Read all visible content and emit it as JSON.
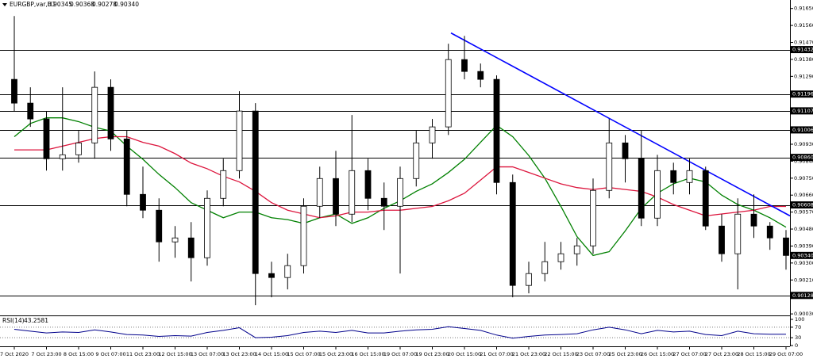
{
  "header": {
    "symbol": "EURGBP,var,H1",
    "values": [
      "0.90345",
      "0.90368",
      "0.90278",
      "0.90340"
    ]
  },
  "chart_data": [
    {
      "type": "candlestick",
      "title": "EURGBP,var,H1",
      "categories": [
        "7 Oct 2020",
        null,
        "7 Oct 23:00",
        null,
        "8 Oct 15:00",
        null,
        "9 Oct 07:00",
        null,
        "11 Oct 23:00",
        null,
        "12 Oct 15:00",
        null,
        "13 Oct 07:00",
        null,
        "13 Oct 23:00",
        null,
        "14 Oct 15:00",
        null,
        "15 Oct 07:00",
        null,
        "15 Oct 23:00",
        null,
        "16 Oct 15:00",
        null,
        "19 Oct 07:00",
        null,
        "19 Oct 23:00",
        null,
        "20 Oct 15:00",
        null,
        "21 Oct 07:00",
        null,
        "21 Oct 23:00",
        null,
        "22 Oct 15:00",
        null,
        "23 Oct 07:00",
        null,
        "25 Oct 23:00",
        null,
        "26 Oct 15:00",
        null,
        "27 Oct 07:00",
        null,
        "27 Oct 23:00",
        null,
        "28 Oct 15:00",
        null,
        "29 Oct 07:00"
      ],
      "open": [
        0.91274,
        0.91148,
        0.91064,
        0.90853,
        0.90874,
        0.90937,
        0.91232,
        0.90958,
        0.90664,
        0.9058,
        0.90412,
        0.90433,
        0.90328,
        0.90643,
        0.9079,
        0.91106,
        0.90244,
        0.90223,
        0.90286,
        0.90601,
        0.90748,
        0.90559,
        0.9079,
        0.90643,
        0.90601,
        0.90748,
        0.90937,
        0.91022,
        0.91379,
        0.91316,
        0.91274,
        0.90727,
        0.90181,
        0.90244,
        0.90307,
        0.90349,
        0.90391,
        0.90685,
        0.90937,
        0.90853,
        0.90538,
        0.9079,
        0.90727,
        0.9079,
        0.90496,
        0.90349,
        0.90559,
        0.90496,
        0.90433
      ],
      "high": [
        0.9161,
        0.91232,
        0.91106,
        0.91232,
        0.91001,
        0.91316,
        0.91274,
        0.91001,
        0.90811,
        0.90643,
        0.90496,
        0.90517,
        0.90685,
        0.90853,
        0.91211,
        0.91148,
        0.90307,
        0.90349,
        0.90643,
        0.90811,
        0.90895,
        0.91085,
        0.90853,
        0.90727,
        0.90811,
        0.91001,
        0.91064,
        0.91463,
        0.91505,
        0.91358,
        0.91295,
        0.90769,
        0.90307,
        0.90412,
        0.90412,
        0.90433,
        0.90748,
        0.91064,
        0.90979,
        0.91001,
        0.90874,
        0.90832,
        0.90853,
        0.90811,
        0.90559,
        0.90643,
        0.90664,
        0.90517,
        0.90475
      ],
      "low": [
        0.91106,
        0.91022,
        0.9079,
        0.9079,
        0.90832,
        0.90853,
        0.90895,
        0.90601,
        0.90538,
        0.90307,
        0.90328,
        0.90202,
        0.90286,
        0.90601,
        0.90748,
        0.90076,
        0.90118,
        0.9016,
        0.90244,
        0.90538,
        0.90496,
        0.90517,
        0.9058,
        0.90475,
        0.90244,
        0.90706,
        0.90853,
        0.90979,
        0.91274,
        0.91232,
        0.90664,
        0.90118,
        0.90139,
        0.90202,
        0.90265,
        0.90286,
        0.90349,
        0.90643,
        0.90727,
        0.90496,
        0.90496,
        0.90664,
        0.90664,
        0.90475,
        0.90307,
        0.9016,
        0.90433,
        0.9037,
        0.90265
      ],
      "close": [
        0.91148,
        0.91064,
        0.90853,
        0.90874,
        0.90937,
        0.91232,
        0.90958,
        0.90664,
        0.9058,
        0.90412,
        0.90433,
        0.90328,
        0.90643,
        0.9079,
        0.91106,
        0.90244,
        0.90223,
        0.90286,
        0.90601,
        0.90748,
        0.90559,
        0.9079,
        0.90643,
        0.90601,
        0.90748,
        0.90937,
        0.91022,
        0.91379,
        0.91316,
        0.91274,
        0.90727,
        0.90181,
        0.90244,
        0.90307,
        0.90349,
        0.90391,
        0.90685,
        0.90937,
        0.90853,
        0.90538,
        0.9079,
        0.90727,
        0.9079,
        0.90496,
        0.90349,
        0.90559,
        0.90496,
        0.90433,
        0.9034
      ],
      "color": "#000000",
      "series": [
        {
          "color": "#008000",
          "values": [
            0.9097,
            0.9104,
            0.9107,
            0.9107,
            0.9105,
            0.9102,
            0.91,
            0.9092,
            0.9085,
            0.9077,
            0.907,
            0.9062,
            0.9058,
            0.9054,
            0.9057,
            0.9057,
            0.9054,
            0.9053,
            0.9051,
            0.9054,
            0.9056,
            0.9051,
            0.9054,
            0.9059,
            0.9063,
            0.9068,
            0.9072,
            0.9078,
            0.9085,
            0.9094,
            0.9103,
            0.9097,
            0.9087,
            0.9075,
            0.906,
            0.9044,
            0.9034,
            0.9036,
            0.9047,
            0.9059,
            0.9067,
            0.9072,
            0.9075,
            0.9073,
            0.9066,
            0.9061,
            0.9058,
            0.9054,
            0.9049
          ]
        },
        {
          "color": "#dc143c",
          "values": [
            0.909,
            0.909,
            0.909,
            0.9092,
            0.9094,
            0.9096,
            0.9097,
            0.9097,
            0.9094,
            0.9092,
            0.9088,
            0.9083,
            0.908,
            0.9076,
            0.9073,
            0.9068,
            0.9062,
            0.9058,
            0.9056,
            0.9054,
            0.9055,
            0.9057,
            0.9057,
            0.9058,
            0.9058,
            0.9059,
            0.906,
            0.9063,
            0.9067,
            0.9074,
            0.9081,
            0.9081,
            0.9078,
            0.9075,
            0.9072,
            0.907,
            0.9069,
            0.907,
            0.9069,
            0.9068,
            0.9065,
            0.9061,
            0.9058,
            0.9055,
            0.9056,
            0.9057,
            0.9058,
            0.906,
            0.906
          ]
        }
      ],
      "trendline": {
        "color": "#0000ff",
        "values": [
          0.9152,
          0.9055
        ]
      },
      "levels": [
        0.91432,
        0.91196,
        0.91107,
        0.91006,
        {
          "value": 0.9086,
          "label": "0.90860"
        },
        0.90608,
        0.90128
      ],
      "current_price": {
        "value": 0.9034,
        "label": "0.90340"
      },
      "ylim": [
        0.90022,
        0.91695
      ],
      "yticks": [
        {
          "value": 0.9165,
          "label": "0.91650"
        },
        {
          "value": 0.9156,
          "label": "0.91560"
        },
        {
          "value": 0.9147,
          "label": "0.91470"
        },
        {
          "value": 0.9138,
          "label": "0.91380"
        },
        {
          "value": 0.9129,
          "label": "0.91290"
        },
        {
          "value": 0.9093,
          "label": "0.90930"
        },
        {
          "value": 0.9084,
          "label": "0.90840"
        },
        {
          "value": 0.9075,
          "label": "0.90750"
        },
        {
          "value": 0.9066,
          "label": "0.90660"
        },
        {
          "value": 0.9057,
          "label": "0.90570"
        },
        {
          "value": 0.9048,
          "label": "0.90480"
        },
        {
          "value": 0.9039,
          "label": "0.90390"
        },
        {
          "value": 0.903,
          "label": "0.90300"
        },
        {
          "value": 0.9021,
          "label": "0.90210"
        },
        {
          "value": 0.9003,
          "label": "0.90030"
        }
      ],
      "grid": false
    },
    {
      "type": "line",
      "title": "RSI(14)",
      "color": "#00008b",
      "values": [
        62,
        55,
        48,
        52,
        50,
        60,
        52,
        42,
        40,
        35,
        38,
        36,
        50,
        58,
        68,
        30,
        32,
        38,
        50,
        55,
        50,
        58,
        48,
        48,
        55,
        60,
        62,
        72,
        65,
        58,
        40,
        28,
        35,
        40,
        42,
        45,
        60,
        70,
        60,
        45,
        58,
        52,
        55,
        42,
        38,
        55,
        45,
        43,
        43.2581
      ],
      "levels": [
        70,
        30
      ],
      "ylim": [
        0,
        100
      ],
      "yticks": [
        100,
        70,
        30,
        0
      ]
    }
  ]
}
